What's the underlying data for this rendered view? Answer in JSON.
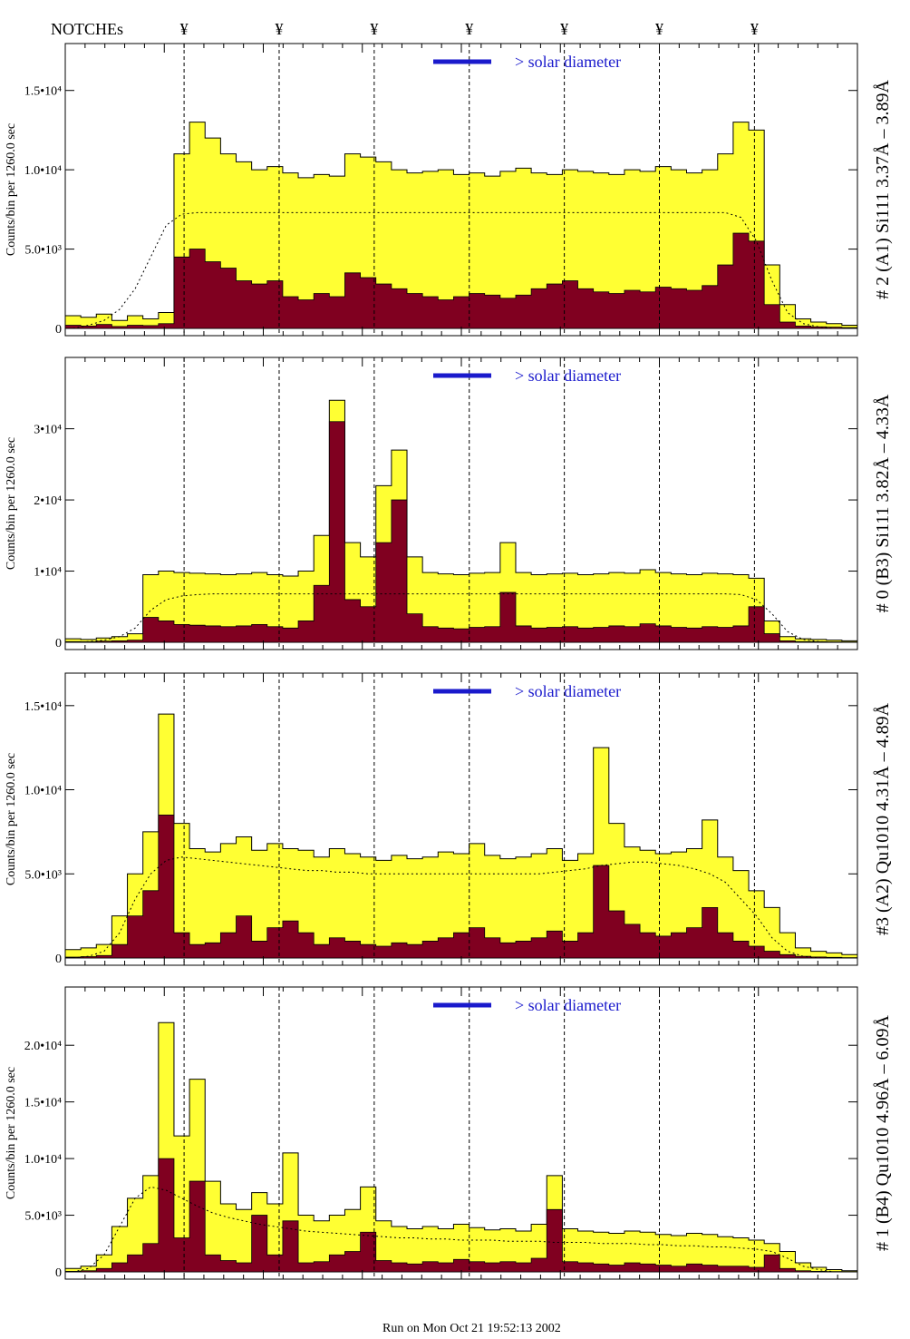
{
  "header": {
    "notches_label": "NOTCHEs",
    "notch_symbol": "¥"
  },
  "footer": {
    "run_text": "Run on Mon Oct 21 19:52:13 2002"
  },
  "colors": {
    "total_fill": "#ffff33",
    "component_fill": "#800020",
    "outline": "#000000",
    "label_blue": "#1a1acc",
    "dash": "#000000"
  },
  "chart_data": [
    {
      "type": "area",
      "title": "# 2 (A1) Si111  3.37Å – 3.89Å",
      "ylabel": "Counts/bin per   1260.0 sec",
      "ytick_labels": [
        "0",
        "5.0•10³",
        "1.0•10⁴",
        "1.5•10⁴"
      ],
      "ytick_values": [
        0,
        5000,
        10000,
        15000
      ],
      "ylim": [
        0,
        17500
      ],
      "legend": "> solar diameter",
      "notches_x": [
        0.15,
        0.27,
        0.39,
        0.51,
        0.63,
        0.75,
        0.87
      ],
      "x": [
        0.0,
        0.02,
        0.04,
        0.06,
        0.08,
        0.1,
        0.12,
        0.14,
        0.16,
        0.18,
        0.2,
        0.22,
        0.24,
        0.26,
        0.28,
        0.3,
        0.32,
        0.34,
        0.36,
        0.38,
        0.4,
        0.42,
        0.44,
        0.46,
        0.48,
        0.5,
        0.52,
        0.54,
        0.56,
        0.58,
        0.6,
        0.62,
        0.64,
        0.66,
        0.68,
        0.7,
        0.72,
        0.74,
        0.76,
        0.78,
        0.8,
        0.82,
        0.84,
        0.86,
        0.88,
        0.9,
        0.92,
        0.94,
        0.96,
        0.98,
        1.0
      ],
      "series": [
        {
          "name": "total",
          "values": [
            800,
            700,
            900,
            500,
            800,
            600,
            1000,
            11000,
            13000,
            12000,
            11000,
            10500,
            10000,
            10200,
            9800,
            9500,
            9700,
            9600,
            11000,
            10800,
            10500,
            10000,
            9800,
            9900,
            10000,
            9700,
            9800,
            9600,
            9900,
            10100,
            9800,
            9700,
            10000,
            9900,
            9800,
            9700,
            10000,
            9900,
            10200,
            10000,
            9800,
            10000,
            11000,
            13000,
            12500,
            4000,
            1500,
            600,
            400,
            300,
            200
          ]
        },
        {
          "name": "component",
          "values": [
            200,
            150,
            250,
            120,
            200,
            180,
            300,
            4500,
            5000,
            4200,
            3800,
            3000,
            2800,
            3000,
            2000,
            1800,
            2200,
            2000,
            3500,
            3200,
            2800,
            2500,
            2200,
            2000,
            1800,
            2000,
            2200,
            2100,
            1900,
            2100,
            2500,
            2800,
            3000,
            2500,
            2300,
            2200,
            2400,
            2300,
            2600,
            2500,
            2400,
            2700,
            4000,
            6000,
            5500,
            1500,
            400,
            150,
            100,
            80,
            50
          ]
        },
        {
          "name": "model",
          "values": [
            0,
            200,
            500,
            1200,
            2500,
            4500,
            6500,
            7200,
            7300,
            7300,
            7300,
            7300,
            7300,
            7300,
            7300,
            7300,
            7300,
            7300,
            7300,
            7300,
            7300,
            7300,
            7300,
            7300,
            7300,
            7300,
            7300,
            7300,
            7300,
            7300,
            7300,
            7300,
            7300,
            7300,
            7300,
            7300,
            7300,
            7300,
            7300,
            7300,
            7300,
            7300,
            7300,
            7000,
            5500,
            3000,
            1000,
            300,
            100,
            0,
            0
          ]
        }
      ]
    },
    {
      "type": "area",
      "title": "# 0 (B3) Si111  3.82Å – 4.33Å",
      "ylabel": "Counts/bin per   1260.0 sec",
      "ytick_labels": [
        "0",
        "1•10⁴",
        "2•10⁴",
        "3•10⁴"
      ],
      "ytick_values": [
        0,
        10000,
        20000,
        30000
      ],
      "ylim": [
        0,
        39000
      ],
      "legend": "> solar diameter",
      "notches_x": [
        0.15,
        0.27,
        0.39,
        0.51,
        0.63,
        0.75,
        0.87
      ],
      "x": [
        0.0,
        0.02,
        0.04,
        0.06,
        0.08,
        0.1,
        0.12,
        0.14,
        0.16,
        0.18,
        0.2,
        0.22,
        0.24,
        0.26,
        0.28,
        0.3,
        0.32,
        0.34,
        0.36,
        0.38,
        0.4,
        0.42,
        0.44,
        0.46,
        0.48,
        0.5,
        0.52,
        0.54,
        0.56,
        0.58,
        0.6,
        0.62,
        0.64,
        0.66,
        0.68,
        0.7,
        0.72,
        0.74,
        0.76,
        0.78,
        0.8,
        0.82,
        0.84,
        0.86,
        0.88,
        0.9,
        0.92,
        0.94,
        0.96,
        0.98,
        1.0
      ],
      "series": [
        {
          "name": "total",
          "values": [
            500,
            400,
            600,
            800,
            1200,
            9500,
            10000,
            9800,
            9700,
            9600,
            9500,
            9600,
            9800,
            9500,
            9300,
            10000,
            15000,
            34000,
            14000,
            12000,
            22000,
            27000,
            12000,
            9800,
            9600,
            9500,
            9700,
            9800,
            14000,
            9800,
            9500,
            9600,
            9700,
            9500,
            9600,
            9800,
            9700,
            10200,
            9800,
            9600,
            9500,
            9700,
            9600,
            9500,
            9000,
            3000,
            800,
            500,
            400,
            300,
            200
          ]
        },
        {
          "name": "component",
          "values": [
            100,
            80,
            150,
            200,
            300,
            3500,
            3000,
            2500,
            2400,
            2300,
            2200,
            2300,
            2500,
            2200,
            2000,
            3000,
            8000,
            31000,
            6000,
            5000,
            14000,
            20000,
            4000,
            2200,
            2000,
            1900,
            2100,
            2200,
            7000,
            2300,
            2000,
            2100,
            2200,
            2000,
            2100,
            2300,
            2200,
            2600,
            2300,
            2100,
            2000,
            2200,
            2100,
            2300,
            5000,
            1200,
            200,
            100,
            80,
            60,
            40
          ]
        },
        {
          "name": "model",
          "values": [
            0,
            100,
            300,
            800,
            2000,
            4500,
            6000,
            6500,
            6700,
            6800,
            6800,
            6800,
            6800,
            6800,
            6800,
            6800,
            6800,
            6800,
            6800,
            6800,
            6800,
            6800,
            6800,
            6800,
            6800,
            6800,
            6800,
            6800,
            6800,
            6800,
            6800,
            6800,
            6800,
            6800,
            6800,
            6800,
            6800,
            6800,
            6800,
            6800,
            6800,
            6800,
            6800,
            6700,
            6000,
            4000,
            1500,
            400,
            100,
            0,
            0
          ]
        }
      ]
    },
    {
      "type": "area",
      "title": "#3 (A2) Qu1010  4.31Å – 4.89Å",
      "ylabel": "Counts/bin per   1260.0 sec",
      "ytick_labels": [
        "0",
        "5.0•10³",
        "1.0•10⁴",
        "1.5•10⁴"
      ],
      "ytick_values": [
        0,
        5000,
        10000,
        15000
      ],
      "ylim": [
        0,
        16500
      ],
      "legend": "> solar diameter",
      "notches_x": [
        0.15,
        0.27,
        0.39,
        0.51,
        0.63,
        0.75,
        0.87
      ],
      "x": [
        0.0,
        0.02,
        0.04,
        0.06,
        0.08,
        0.1,
        0.12,
        0.14,
        0.16,
        0.18,
        0.2,
        0.22,
        0.24,
        0.26,
        0.28,
        0.3,
        0.32,
        0.34,
        0.36,
        0.38,
        0.4,
        0.42,
        0.44,
        0.46,
        0.48,
        0.5,
        0.52,
        0.54,
        0.56,
        0.58,
        0.6,
        0.62,
        0.64,
        0.66,
        0.68,
        0.7,
        0.72,
        0.74,
        0.76,
        0.78,
        0.8,
        0.82,
        0.84,
        0.86,
        0.88,
        0.9,
        0.92,
        0.94,
        0.96,
        0.98,
        1.0
      ],
      "series": [
        {
          "name": "total",
          "values": [
            500,
            600,
            800,
            2500,
            5000,
            7500,
            14500,
            8000,
            6500,
            6300,
            6800,
            7200,
            6400,
            6800,
            6500,
            6400,
            6000,
            6500,
            6200,
            6000,
            5800,
            6100,
            5900,
            6000,
            6300,
            6200,
            6800,
            6100,
            5900,
            6000,
            6200,
            6500,
            5800,
            6200,
            12500,
            8000,
            6600,
            6400,
            6200,
            6300,
            6500,
            8200,
            6000,
            5200,
            4000,
            3000,
            1500,
            600,
            400,
            300,
            200
          ]
        },
        {
          "name": "component",
          "values": [
            50,
            80,
            150,
            800,
            2500,
            4000,
            8500,
            1500,
            800,
            900,
            1500,
            2500,
            1000,
            1800,
            2200,
            1500,
            800,
            1200,
            1000,
            800,
            700,
            900,
            800,
            1000,
            1200,
            1500,
            1800,
            1200,
            900,
            1000,
            1200,
            1600,
            1000,
            1500,
            5500,
            2800,
            2000,
            1500,
            1300,
            1500,
            1800,
            3000,
            1500,
            1000,
            700,
            400,
            200,
            100,
            60,
            40,
            20
          ]
        },
        {
          "name": "model",
          "values": [
            0,
            100,
            400,
            1500,
            3500,
            5000,
            5800,
            6000,
            5900,
            5800,
            5700,
            5600,
            5500,
            5400,
            5300,
            5200,
            5200,
            5100,
            5100,
            5000,
            5000,
            5000,
            5000,
            5000,
            5000,
            5000,
            5000,
            5000,
            5000,
            5000,
            5000,
            5100,
            5200,
            5300,
            5500,
            5600,
            5700,
            5700,
            5600,
            5500,
            5300,
            5000,
            4500,
            3500,
            2500,
            1200,
            400,
            100,
            0,
            0,
            0
          ]
        }
      ]
    },
    {
      "type": "area",
      "title": "# 1 (B4) Qu1010 4.96Å – 6.09Å",
      "ylabel": "Counts/bin per   1260.0 sec",
      "ytick_labels": [
        "0",
        "5.0•10³",
        "1.0•10⁴",
        "1.5•10⁴",
        "2.0•10⁴"
      ],
      "ytick_values": [
        0,
        5000,
        10000,
        15000,
        20000
      ],
      "ylim": [
        0,
        24500
      ],
      "legend": "> solar diameter",
      "notches_x": [
        0.15,
        0.27,
        0.39,
        0.51,
        0.63,
        0.75,
        0.87
      ],
      "x": [
        0.0,
        0.02,
        0.04,
        0.06,
        0.08,
        0.1,
        0.12,
        0.14,
        0.16,
        0.18,
        0.2,
        0.22,
        0.24,
        0.26,
        0.28,
        0.3,
        0.32,
        0.34,
        0.36,
        0.38,
        0.4,
        0.42,
        0.44,
        0.46,
        0.48,
        0.5,
        0.52,
        0.54,
        0.56,
        0.58,
        0.6,
        0.62,
        0.64,
        0.66,
        0.68,
        0.7,
        0.72,
        0.74,
        0.76,
        0.78,
        0.8,
        0.82,
        0.84,
        0.86,
        0.88,
        0.9,
        0.92,
        0.94,
        0.96,
        0.98,
        1.0
      ],
      "series": [
        {
          "name": "total",
          "values": [
            300,
            500,
            1500,
            4000,
            6500,
            8500,
            22000,
            12000,
            17000,
            8000,
            6000,
            5500,
            7000,
            6000,
            10500,
            5000,
            4500,
            5000,
            5500,
            7500,
            4500,
            4000,
            3800,
            4000,
            3800,
            4200,
            3900,
            3700,
            3800,
            3600,
            4200,
            8500,
            3800,
            3600,
            3500,
            3400,
            3600,
            3500,
            3300,
            3200,
            3400,
            3300,
            3100,
            3000,
            2800,
            2500,
            1800,
            800,
            400,
            200,
            100
          ]
        },
        {
          "name": "component",
          "values": [
            50,
            100,
            300,
            800,
            1500,
            2500,
            10000,
            3000,
            8000,
            1500,
            1000,
            800,
            5000,
            1500,
            4500,
            800,
            900,
            1500,
            1800,
            3500,
            1000,
            800,
            700,
            900,
            800,
            1100,
            900,
            800,
            900,
            800,
            1200,
            5500,
            900,
            800,
            700,
            600,
            800,
            700,
            600,
            500,
            700,
            600,
            500,
            500,
            400,
            1500,
            300,
            100,
            50,
            30,
            20
          ]
        },
        {
          "name": "model",
          "values": [
            0,
            300,
            1500,
            4000,
            6500,
            7500,
            7200,
            6500,
            5800,
            5200,
            4800,
            4500,
            4200,
            4000,
            3800,
            3600,
            3500,
            3400,
            3300,
            3200,
            3100,
            3000,
            3000,
            2900,
            2900,
            2800,
            2800,
            2800,
            2700,
            2700,
            2700,
            2600,
            2600,
            2600,
            2500,
            2500,
            2500,
            2400,
            2400,
            2300,
            2300,
            2200,
            2200,
            2100,
            2000,
            1800,
            1200,
            500,
            200,
            0,
            0
          ]
        }
      ]
    }
  ]
}
